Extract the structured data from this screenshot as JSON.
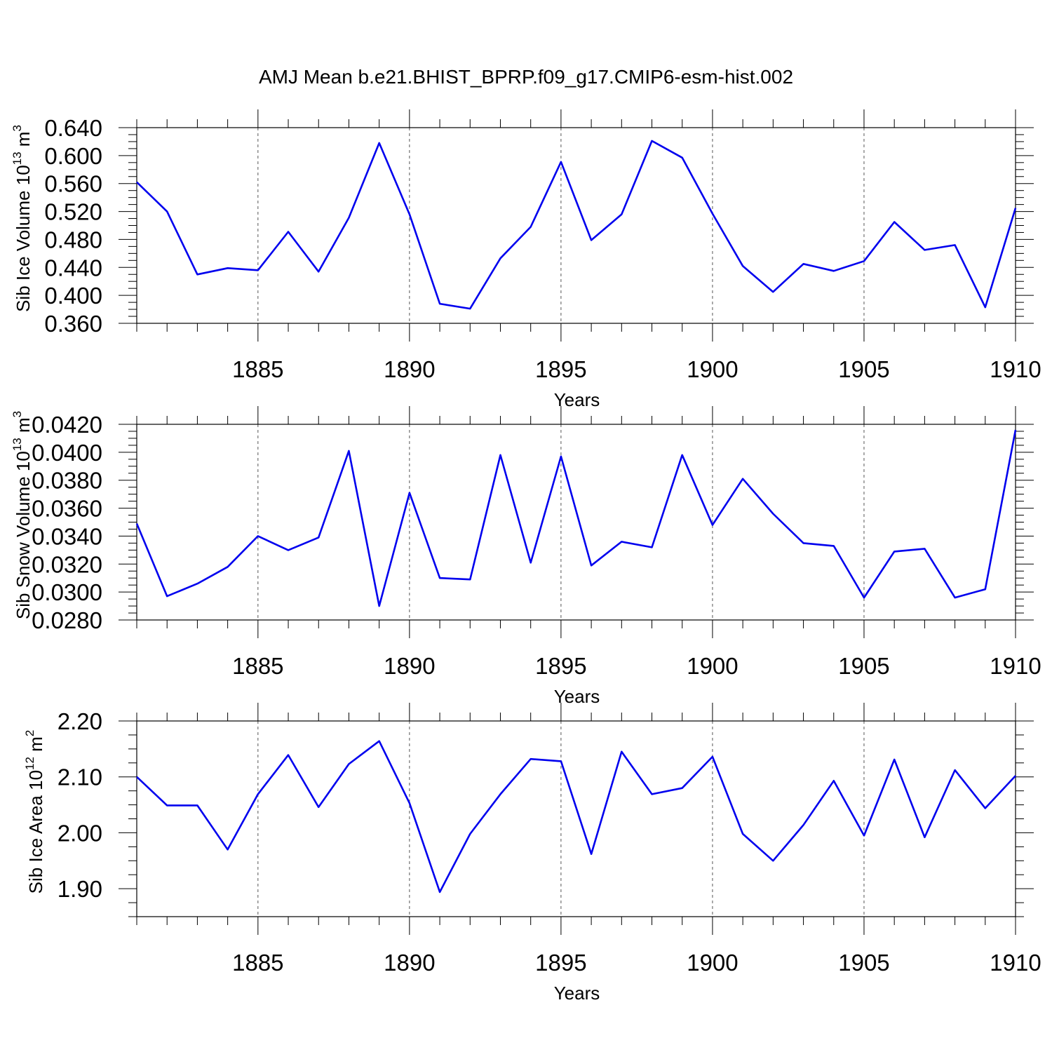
{
  "chart_data": {
    "title": "AMJ Mean b.e21.BHIST_BPRP.f09_g17.CMIP6-esm-hist.002",
    "panels": [
      {
        "type": "line",
        "ylabel_main": "Sib Ice Volume 10",
        "ylabel_exp": "13",
        "ylabel_unit": " m",
        "ylabel_unit_exp": "3",
        "xlabel": "Years",
        "xlim": [
          1881,
          1910
        ],
        "ylim": [
          0.36,
          0.64
        ],
        "yticks": [
          0.36,
          0.4,
          0.44,
          0.48,
          0.52,
          0.56,
          0.6,
          0.64
        ],
        "ytick_labels": [
          "0.360",
          "0.400",
          "0.440",
          "0.480",
          "0.520",
          "0.560",
          "0.600",
          "0.640"
        ],
        "xticks": [
          1885,
          1890,
          1895,
          1900,
          1905,
          1910
        ],
        "xtick_labels": [
          "1885",
          "1890",
          "1895",
          "1900",
          "1905",
          "1910"
        ],
        "grid_x": [
          1885,
          1890,
          1895,
          1900,
          1905
        ],
        "color": "#0000ee",
        "x": [
          1881,
          1882,
          1883,
          1884,
          1885,
          1886,
          1887,
          1888,
          1889,
          1890,
          1891,
          1892,
          1893,
          1894,
          1895,
          1896,
          1897,
          1898,
          1899,
          1900,
          1901,
          1902,
          1903,
          1904,
          1905,
          1906,
          1907,
          1908,
          1909,
          1910
        ],
        "values": [
          0.562,
          0.52,
          0.43,
          0.439,
          0.436,
          0.491,
          0.434,
          0.511,
          0.618,
          0.516,
          0.388,
          0.381,
          0.453,
          0.498,
          0.591,
          0.479,
          0.516,
          0.621,
          0.597,
          0.517,
          0.442,
          0.405,
          0.445,
          0.435,
          0.449,
          0.505,
          0.465,
          0.472,
          0.383,
          0.525
        ]
      },
      {
        "type": "line",
        "ylabel_main": "Sib Snow Volume 10",
        "ylabel_exp": "13",
        "ylabel_unit": " m",
        "ylabel_unit_exp": "3",
        "xlabel": "Years",
        "xlim": [
          1881,
          1910
        ],
        "ylim": [
          0.028,
          0.042
        ],
        "yticks": [
          0.028,
          0.03,
          0.032,
          0.034,
          0.036,
          0.038,
          0.04,
          0.042
        ],
        "ytick_labels": [
          "0.0280",
          "0.0300",
          "0.0320",
          "0.0340",
          "0.0360",
          "0.0380",
          "0.0400",
          "0.0420"
        ],
        "xticks": [
          1885,
          1890,
          1895,
          1900,
          1905,
          1910
        ],
        "xtick_labels": [
          "1885",
          "1890",
          "1895",
          "1900",
          "1905",
          "1910"
        ],
        "grid_x": [
          1885,
          1890,
          1895,
          1900,
          1905
        ],
        "color": "#0000ee",
        "x": [
          1881,
          1882,
          1883,
          1884,
          1885,
          1886,
          1887,
          1888,
          1889,
          1890,
          1891,
          1892,
          1893,
          1894,
          1895,
          1896,
          1897,
          1898,
          1899,
          1900,
          1901,
          1902,
          1903,
          1904,
          1905,
          1906,
          1907,
          1908,
          1909,
          1910
        ],
        "values": [
          0.0349,
          0.0297,
          0.0306,
          0.0318,
          0.034,
          0.033,
          0.0339,
          0.0401,
          0.029,
          0.0371,
          0.031,
          0.0309,
          0.0398,
          0.0321,
          0.0397,
          0.0319,
          0.0336,
          0.0332,
          0.0398,
          0.0348,
          0.0381,
          0.0356,
          0.0335,
          0.0333,
          0.0296,
          0.0329,
          0.0331,
          0.0296,
          0.0302,
          0.0416
        ]
      },
      {
        "type": "line",
        "ylabel_main": "Sib Ice Area 10",
        "ylabel_exp": "12",
        "ylabel_unit": " m",
        "ylabel_unit_exp": "2",
        "xlabel": "Years",
        "xlim": [
          1881,
          1910
        ],
        "ylim": [
          1.85,
          2.2
        ],
        "yticks": [
          1.9,
          2.0,
          2.1,
          2.2
        ],
        "ytick_labels": [
          "1.90",
          "2.00",
          "2.10",
          "2.20"
        ],
        "xticks": [
          1885,
          1890,
          1895,
          1900,
          1905,
          1910
        ],
        "xtick_labels": [
          "1885",
          "1890",
          "1895",
          "1900",
          "1905",
          "1910"
        ],
        "grid_x": [
          1885,
          1890,
          1895,
          1900,
          1905
        ],
        "color": "#0000ee",
        "x": [
          1881,
          1882,
          1883,
          1884,
          1885,
          1886,
          1887,
          1888,
          1889,
          1890,
          1891,
          1892,
          1893,
          1894,
          1895,
          1896,
          1897,
          1898,
          1899,
          1900,
          1901,
          1902,
          1903,
          1904,
          1905,
          1906,
          1907,
          1908,
          1909,
          1910
        ],
        "values": [
          2.1,
          2.049,
          2.049,
          1.97,
          2.069,
          2.139,
          2.046,
          2.123,
          2.164,
          2.053,
          1.894,
          1.998,
          2.069,
          2.132,
          2.128,
          1.962,
          2.145,
          2.069,
          2.08,
          2.136,
          1.998,
          1.95,
          2.014,
          2.093,
          1.995,
          2.131,
          1.992,
          2.112,
          2.044,
          2.102
        ]
      }
    ]
  }
}
